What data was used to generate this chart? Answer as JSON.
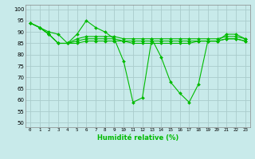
{
  "xlabel": "Humidité relative (%)",
  "bg_color": "#c8eaea",
  "grid_color": "#aacccc",
  "line_color": "#00bb00",
  "xlim": [
    -0.5,
    23.5
  ],
  "ylim": [
    48,
    102
  ],
  "yticks": [
    50,
    55,
    60,
    65,
    70,
    75,
    80,
    85,
    90,
    95,
    100
  ],
  "xticks": [
    0,
    1,
    2,
    3,
    4,
    5,
    6,
    7,
    8,
    9,
    10,
    11,
    12,
    13,
    14,
    15,
    16,
    17,
    18,
    19,
    20,
    21,
    22,
    23
  ],
  "series": [
    [
      94,
      92,
      90,
      89,
      85,
      89,
      95,
      92,
      90,
      87,
      77,
      59,
      61,
      87,
      79,
      68,
      63,
      59,
      67,
      86,
      86,
      89,
      89,
      87
    ],
    [
      94,
      92,
      89,
      85,
      85,
      85,
      86,
      86,
      86,
      86,
      86,
      85,
      85,
      85,
      85,
      85,
      85,
      85,
      86,
      86,
      86,
      87,
      87,
      86
    ],
    [
      94,
      92,
      89,
      85,
      85,
      86,
      87,
      87,
      87,
      87,
      86,
      86,
      86,
      86,
      86,
      86,
      86,
      86,
      86,
      86,
      86,
      87,
      87,
      86
    ],
    [
      94,
      92,
      89,
      85,
      85,
      87,
      88,
      88,
      88,
      88,
      87,
      87,
      87,
      87,
      87,
      87,
      87,
      87,
      87,
      87,
      87,
      88,
      88,
      87
    ]
  ]
}
